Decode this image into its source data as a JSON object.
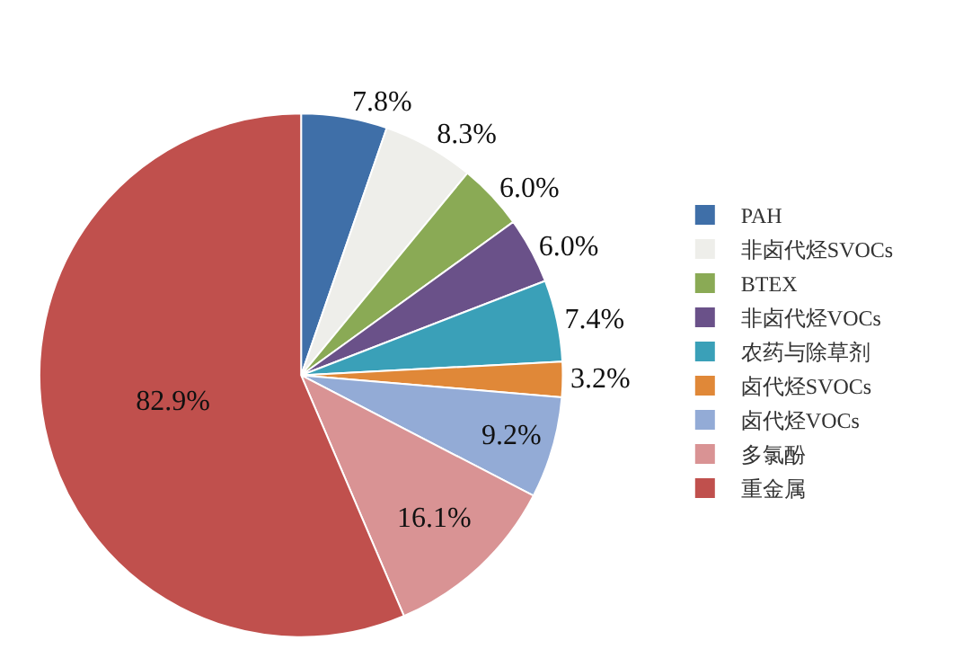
{
  "chart_data": {
    "type": "pie",
    "categories": [
      "PAH",
      "非卤代烃SVOCs",
      "BTEX",
      "非卤代烃VOCs",
      "农药与除草剂",
      "卤代烃SVOCs",
      "卤代烃VOCs",
      "多氯酚",
      "重金属"
    ],
    "values": [
      7.8,
      8.3,
      6.0,
      6.0,
      7.4,
      3.2,
      9.2,
      16.1,
      82.9
    ],
    "value_labels": [
      "7.8%",
      "8.3%",
      "6.0%",
      "6.0%",
      "7.4%",
      "3.2%",
      "9.2%",
      "16.1%",
      "82.9%"
    ],
    "colors": [
      "#3f6fa8",
      "#eeeeea",
      "#8aaa55",
      "#6a5189",
      "#3aa0b8",
      "#e08838",
      "#93abd6",
      "#d99394",
      "#c0504d"
    ],
    "legend": "right"
  }
}
